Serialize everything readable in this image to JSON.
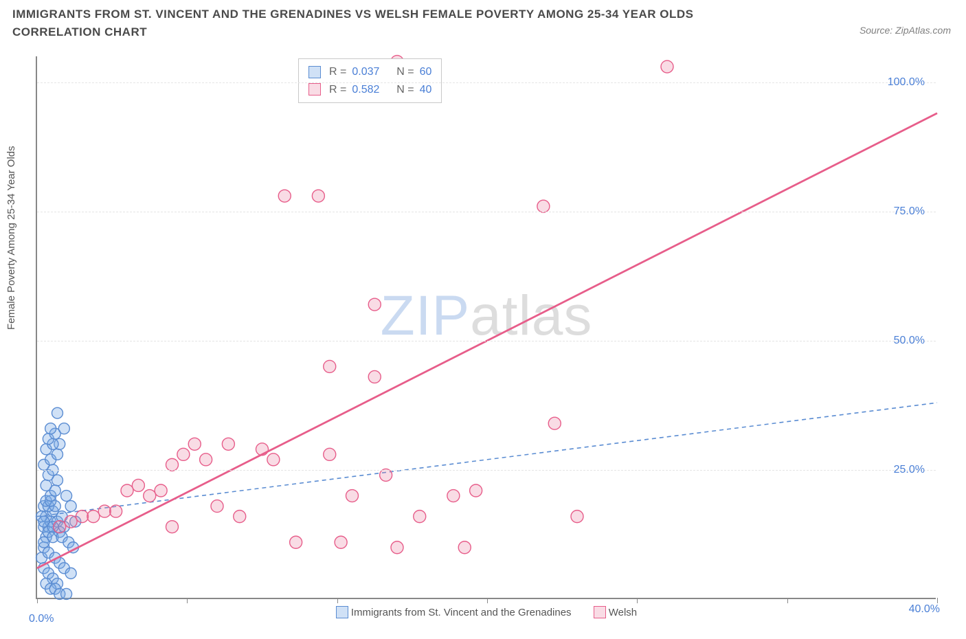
{
  "title": "IMMIGRANTS FROM ST. VINCENT AND THE GRENADINES VS WELSH FEMALE POVERTY AMONG 25-34 YEAR OLDS CORRELATION CHART",
  "source_text": "Source: ZipAtlas.com",
  "ylabel": "Female Poverty Among 25-34 Year Olds",
  "watermark_zip": "ZIP",
  "watermark_atlas": "atlas",
  "chart": {
    "type": "scatter",
    "background_color": "#ffffff",
    "grid_color": "#e4e4e4",
    "axis_color": "#888888",
    "tick_label_color": "#4a7fd6",
    "xlim": [
      0,
      40
    ],
    "ylim": [
      0,
      105
    ],
    "xtick_positions": [
      0,
      6.67,
      13.33,
      20,
      26.67,
      33.33,
      40
    ],
    "xtick_labels_shown": {
      "0": "0.0%",
      "40": "40.0%"
    },
    "ytick_positions": [
      25,
      50,
      75,
      100
    ],
    "ytick_labels": [
      "25.0%",
      "50.0%",
      "75.0%",
      "100.0%"
    ],
    "series": [
      {
        "name": "Immigrants from St. Vincent and the Grenadines",
        "legend_label": "Immigrants from St. Vincent and the Grenadines",
        "marker_color_fill": "rgba(120,170,230,0.35)",
        "marker_color_stroke": "#5a8cd2",
        "marker_radius": 8,
        "trend_color": "#5a8cd2",
        "trend_dash": "6,5",
        "trend_width": 1.6,
        "R": "0.037",
        "N": "60",
        "trend": {
          "x1": 0,
          "y1": 16,
          "x2": 40,
          "y2": 38
        },
        "points": [
          [
            0.2,
            8
          ],
          [
            0.3,
            10
          ],
          [
            0.4,
            12
          ],
          [
            0.3,
            14
          ],
          [
            0.5,
            14
          ],
          [
            0.6,
            15
          ],
          [
            0.4,
            16
          ],
          [
            0.7,
            17
          ],
          [
            0.3,
            18
          ],
          [
            0.5,
            18
          ],
          [
            0.8,
            18
          ],
          [
            0.4,
            19
          ],
          [
            0.6,
            19
          ],
          [
            0.9,
            15
          ],
          [
            0.5,
            13
          ],
          [
            0.3,
            11
          ],
          [
            0.7,
            12
          ],
          [
            1.0,
            13
          ],
          [
            1.2,
            14
          ],
          [
            0.6,
            20
          ],
          [
            0.8,
            21
          ],
          [
            0.4,
            22
          ],
          [
            0.9,
            23
          ],
          [
            1.1,
            16
          ],
          [
            0.5,
            24
          ],
          [
            0.7,
            25
          ],
          [
            0.3,
            26
          ],
          [
            0.6,
            27
          ],
          [
            0.9,
            28
          ],
          [
            0.4,
            29
          ],
          [
            1.0,
            30
          ],
          [
            0.7,
            30
          ],
          [
            0.5,
            31
          ],
          [
            0.8,
            32
          ],
          [
            1.2,
            33
          ],
          [
            0.6,
            33
          ],
          [
            0.9,
            36
          ],
          [
            1.3,
            20
          ],
          [
            1.5,
            18
          ],
          [
            1.7,
            15
          ],
          [
            0.3,
            6
          ],
          [
            0.5,
            5
          ],
          [
            0.7,
            4
          ],
          [
            0.9,
            3
          ],
          [
            0.4,
            3
          ],
          [
            0.6,
            2
          ],
          [
            0.8,
            2
          ],
          [
            1.0,
            1
          ],
          [
            1.3,
            1
          ],
          [
            0.2,
            16
          ],
          [
            0.3,
            15
          ],
          [
            0.7,
            14
          ],
          [
            1.1,
            12
          ],
          [
            1.4,
            11
          ],
          [
            1.6,
            10
          ],
          [
            0.5,
            9
          ],
          [
            0.8,
            8
          ],
          [
            1.0,
            7
          ],
          [
            1.2,
            6
          ],
          [
            1.5,
            5
          ]
        ]
      },
      {
        "name": "Welsh",
        "legend_label": "Welsh",
        "marker_color_fill": "rgba(235,130,160,0.28)",
        "marker_color_stroke": "#e75d8a",
        "marker_radius": 9,
        "trend_color": "#e75d8a",
        "trend_dash": "none",
        "trend_width": 2.8,
        "R": "0.582",
        "N": "40",
        "trend": {
          "x1": 0,
          "y1": 6,
          "x2": 40,
          "y2": 94
        },
        "points": [
          [
            1.0,
            14
          ],
          [
            1.5,
            15
          ],
          [
            2.0,
            16
          ],
          [
            2.5,
            16
          ],
          [
            3.0,
            17
          ],
          [
            3.5,
            17
          ],
          [
            4.0,
            21
          ],
          [
            4.5,
            22
          ],
          [
            5.0,
            20
          ],
          [
            5.5,
            21
          ],
          [
            6.0,
            26
          ],
          [
            6.5,
            28
          ],
          [
            7.0,
            30
          ],
          [
            7.5,
            27
          ],
          [
            8.0,
            18
          ],
          [
            8.5,
            30
          ],
          [
            10.0,
            29
          ],
          [
            10.5,
            27
          ],
          [
            11.5,
            11
          ],
          [
            11.0,
            78
          ],
          [
            13.0,
            45
          ],
          [
            12.5,
            78
          ],
          [
            13.5,
            11
          ],
          [
            13.0,
            28
          ],
          [
            14.0,
            20
          ],
          [
            15.0,
            43
          ],
          [
            15.5,
            24
          ],
          [
            16.0,
            10
          ],
          [
            16.0,
            104
          ],
          [
            15.0,
            57
          ],
          [
            17.0,
            16
          ],
          [
            18.5,
            20
          ],
          [
            19.0,
            10
          ],
          [
            19.5,
            21
          ],
          [
            23.0,
            34
          ],
          [
            24.0,
            16
          ],
          [
            28.0,
            103
          ],
          [
            22.5,
            76
          ],
          [
            6.0,
            14
          ],
          [
            9.0,
            16
          ]
        ]
      }
    ]
  },
  "stats_box": {
    "r_prefix": "R = ",
    "n_prefix": "N = "
  }
}
